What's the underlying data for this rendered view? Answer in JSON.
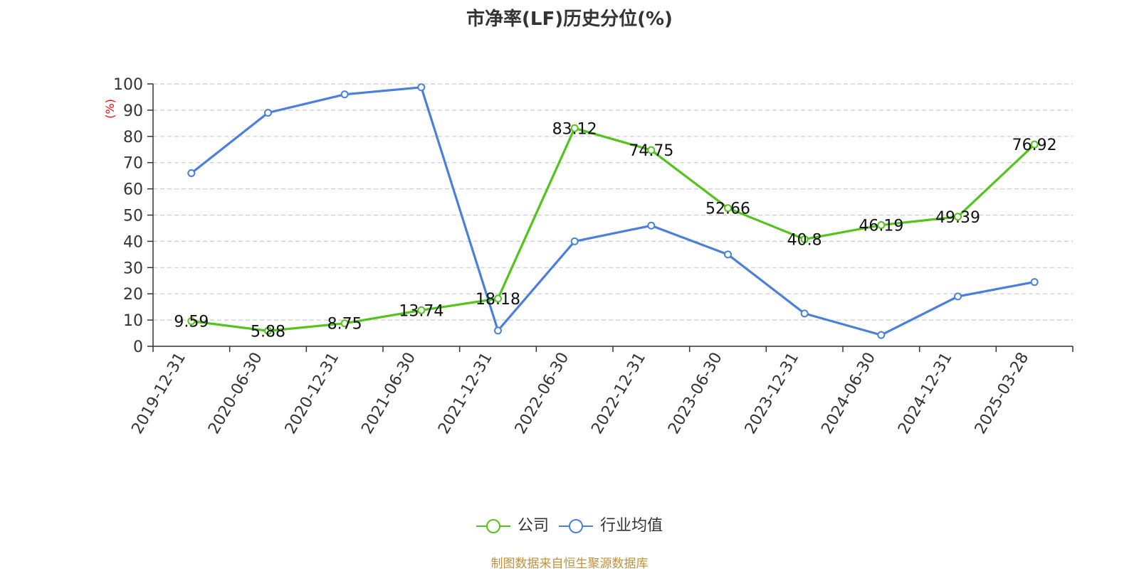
{
  "chart_data": {
    "type": "line",
    "title": "市净率(LF)历史分位(%)",
    "ylabel": "(%)",
    "xlabel": "",
    "ylim": [
      0,
      100
    ],
    "yticks": [
      0,
      10,
      20,
      30,
      40,
      50,
      60,
      70,
      80,
      90,
      100
    ],
    "grid": true,
    "legend_position": "bottom",
    "categories": [
      "2019-12-31",
      "2020-06-30",
      "2020-12-31",
      "2021-06-30",
      "2021-12-31",
      "2022-06-30",
      "2022-12-31",
      "2023-06-30",
      "2023-12-31",
      "2024-06-30",
      "2024-12-31",
      "2025-03-28"
    ],
    "series": [
      {
        "name": "公司",
        "color": "#52c41a",
        "labels": true,
        "values": [
          9.59,
          5.88,
          8.75,
          13.74,
          18.18,
          83.12,
          74.75,
          52.66,
          40.8,
          46.19,
          49.39,
          76.92
        ]
      },
      {
        "name": "行业均值",
        "color": "#4a7fdc",
        "labels": false,
        "values": [
          66,
          89,
          96,
          98.7,
          6,
          40,
          46,
          35,
          12.5,
          4.3,
          19,
          24.5
        ]
      }
    ]
  },
  "legend": {
    "items": [
      "公司",
      "行业均值"
    ]
  },
  "source": "制图数据来自恒生聚源数据库",
  "ylabel_color": "#ff0000"
}
